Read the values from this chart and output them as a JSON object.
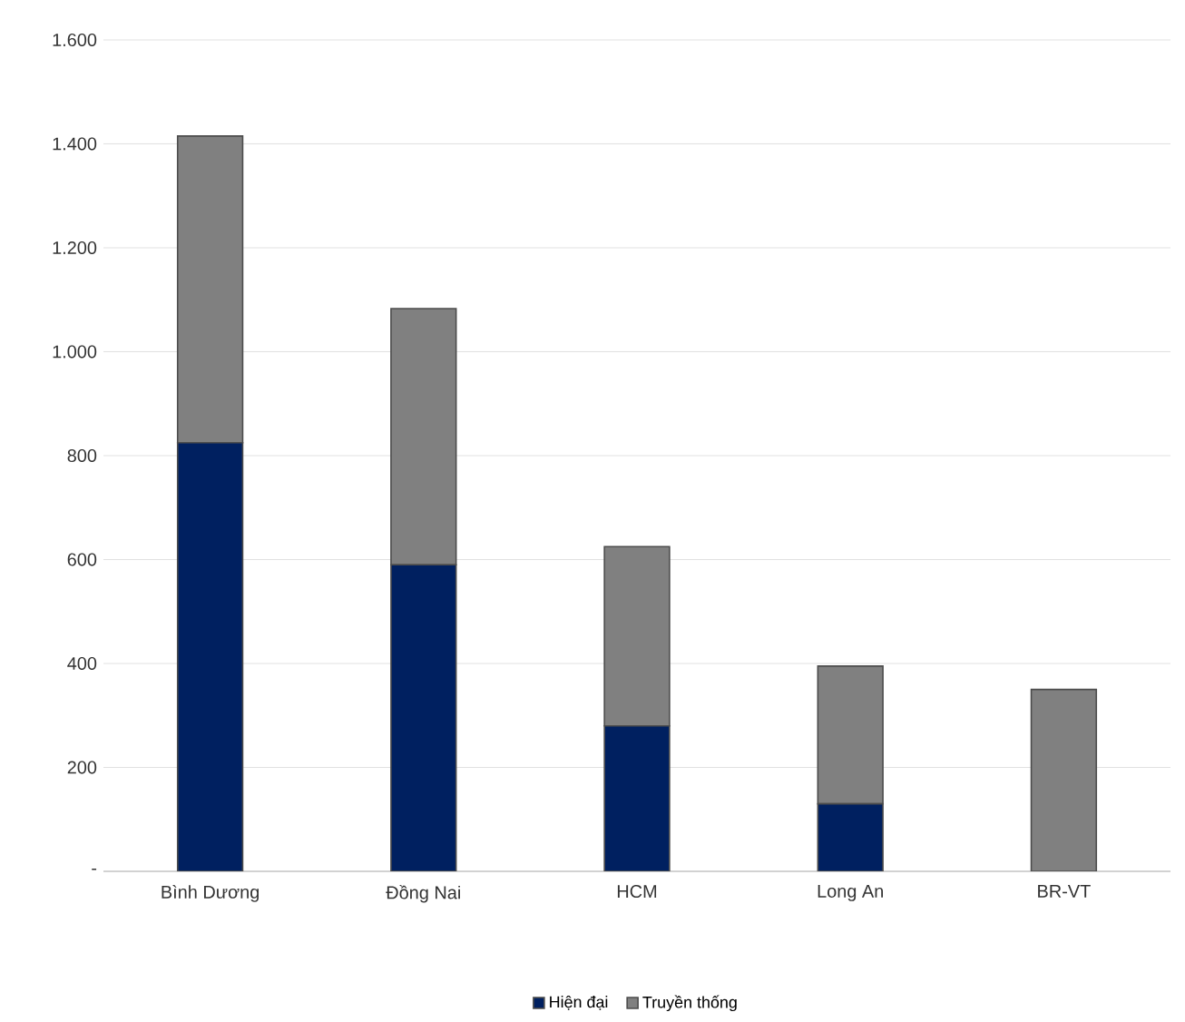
{
  "chart_data": {
    "type": "bar",
    "stacked": true,
    "categories": [
      "Bình Dương",
      "Đồng Nai",
      "HCM",
      "Long An",
      "BR-VT"
    ],
    "series": [
      {
        "name": "Hiện đại",
        "color": "#002060",
        "values": [
          825,
          590,
          280,
          130,
          0
        ]
      },
      {
        "name": "Truyền thống",
        "color": "#808080",
        "values": [
          590,
          493,
          345,
          265,
          350
        ]
      }
    ],
    "ylim": [
      0,
      1600
    ],
    "yticks": [
      {
        "value": 0,
        "label": "-"
      },
      200,
      400,
      600,
      800,
      {
        "value": 1000,
        "label": "1.000"
      },
      {
        "value": 1200,
        "label": "1.200"
      },
      {
        "value": 1400,
        "label": "1.400"
      },
      {
        "value": 1600,
        "label": "1.600"
      }
    ],
    "grid": "y",
    "legend": "bottom"
  }
}
